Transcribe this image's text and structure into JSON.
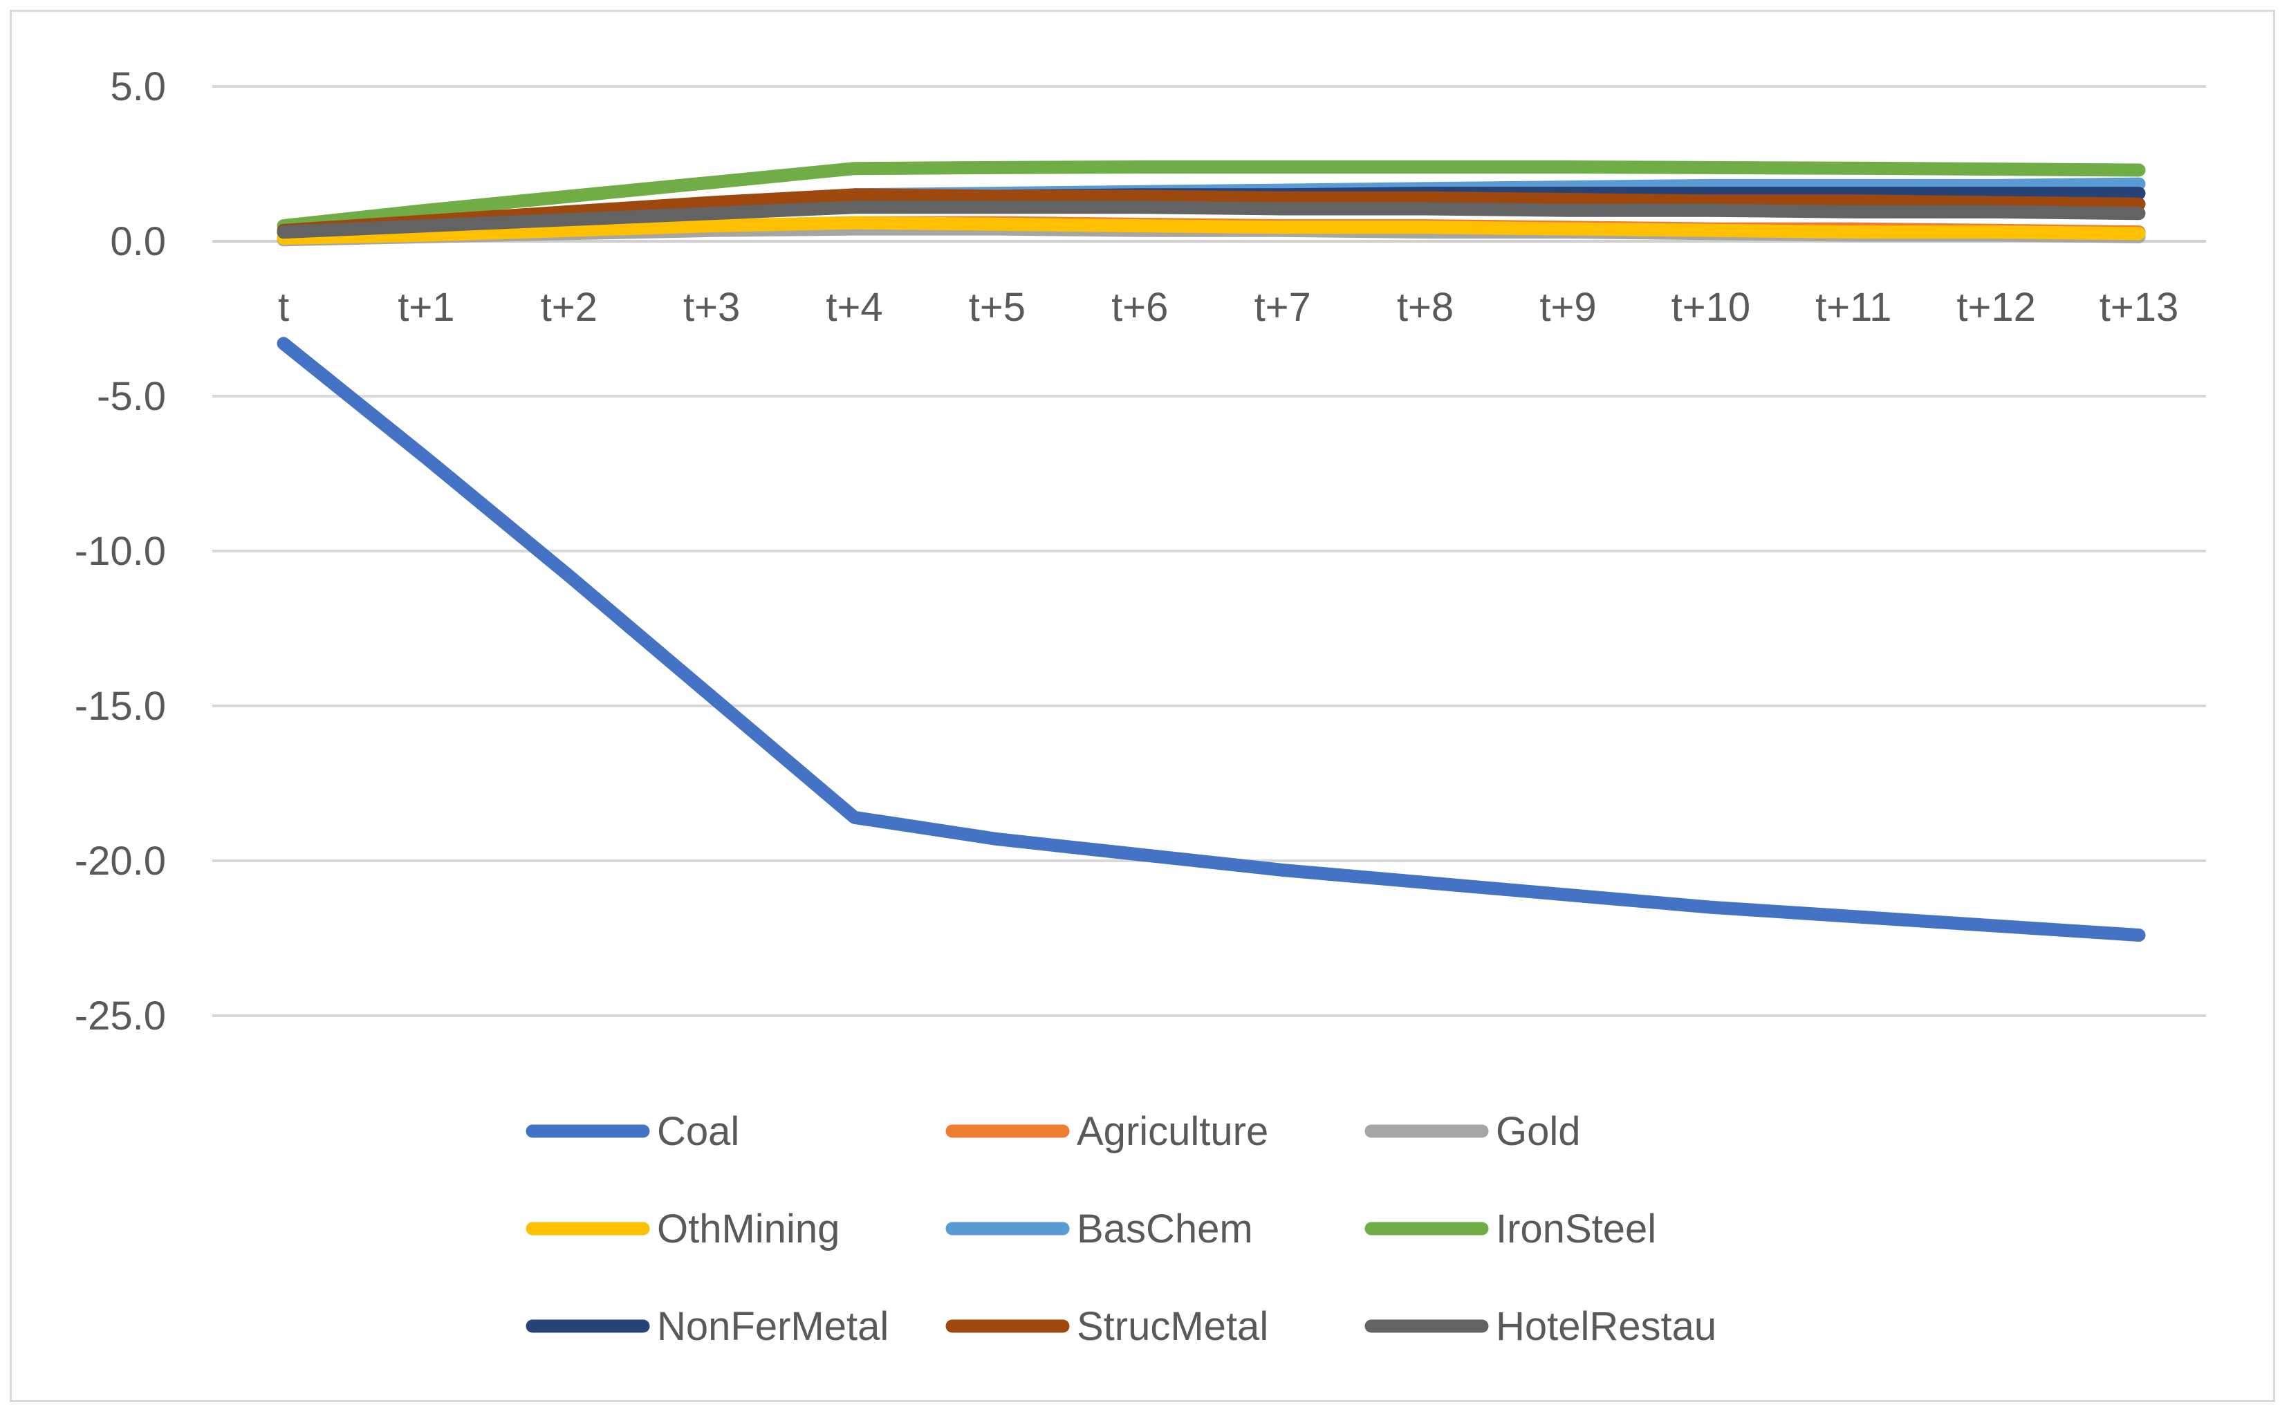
{
  "chart_data": {
    "type": "line",
    "title": "",
    "xlabel": "",
    "ylabel": "",
    "ylim": [
      -25,
      5
    ],
    "y_tick_step": 5,
    "y_tick_labels": [
      "5.0",
      "0.0",
      "-5.0",
      "-10.0",
      "-15.0",
      "-20.0",
      "-25.0"
    ],
    "grid": true,
    "legend_position": "bottom",
    "categories": [
      "t",
      "t+1",
      "t+2",
      "t+3",
      "t+4",
      "t+5",
      "t+6",
      "t+7",
      "t+8",
      "t+9",
      "t+10",
      "t+11",
      "t+12",
      "t+13"
    ],
    "series": [
      {
        "name": "Coal",
        "color": "#4472C4",
        "values": [
          -3.3,
          -7.0,
          -10.8,
          -14.7,
          -18.6,
          -19.3,
          -19.8,
          -20.3,
          -20.7,
          -21.1,
          -21.5,
          -21.8,
          -22.1,
          -22.4
        ]
      },
      {
        "name": "Agriculture",
        "color": "#ED7D31",
        "values": [
          0.1,
          0.2,
          0.3,
          0.45,
          0.6,
          0.6,
          0.55,
          0.5,
          0.5,
          0.45,
          0.4,
          0.4,
          0.35,
          0.3
        ]
      },
      {
        "name": "Gold",
        "color": "#A5A5A5",
        "values": [
          0.05,
          0.15,
          0.25,
          0.35,
          0.4,
          0.4,
          0.35,
          0.35,
          0.3,
          0.3,
          0.25,
          0.2,
          0.2,
          0.15
        ]
      },
      {
        "name": "OthMining",
        "color": "#FFC000",
        "values": [
          0.1,
          0.2,
          0.35,
          0.5,
          0.6,
          0.55,
          0.5,
          0.45,
          0.45,
          0.4,
          0.35,
          0.3,
          0.3,
          0.25
        ]
      },
      {
        "name": "BasChem",
        "color": "#5B9BD5",
        "values": [
          0.3,
          0.6,
          0.9,
          1.2,
          1.5,
          1.55,
          1.6,
          1.65,
          1.7,
          1.75,
          1.8,
          1.8,
          1.8,
          1.85
        ]
      },
      {
        "name": "IronSteel",
        "color": "#70AD47",
        "values": [
          0.5,
          1.0,
          1.45,
          1.9,
          2.35,
          2.38,
          2.4,
          2.4,
          2.4,
          2.4,
          2.38,
          2.36,
          2.33,
          2.3
        ]
      },
      {
        "name": "NonFerMetal",
        "color": "#264478",
        "values": [
          0.3,
          0.55,
          0.85,
          1.1,
          1.4,
          1.45,
          1.5,
          1.5,
          1.55,
          1.55,
          1.55,
          1.55,
          1.55,
          1.55
        ]
      },
      {
        "name": "StrucMetal",
        "color": "#9E480E",
        "values": [
          0.35,
          0.65,
          0.95,
          1.25,
          1.5,
          1.45,
          1.45,
          1.4,
          1.4,
          1.35,
          1.3,
          1.3,
          1.25,
          1.2
        ]
      },
      {
        "name": "HotelRestau",
        "color": "#636363",
        "values": [
          0.3,
          0.5,
          0.7,
          0.9,
          1.1,
          1.1,
          1.1,
          1.05,
          1.05,
          1.0,
          1.0,
          0.95,
          0.95,
          0.9
        ]
      }
    ]
  }
}
